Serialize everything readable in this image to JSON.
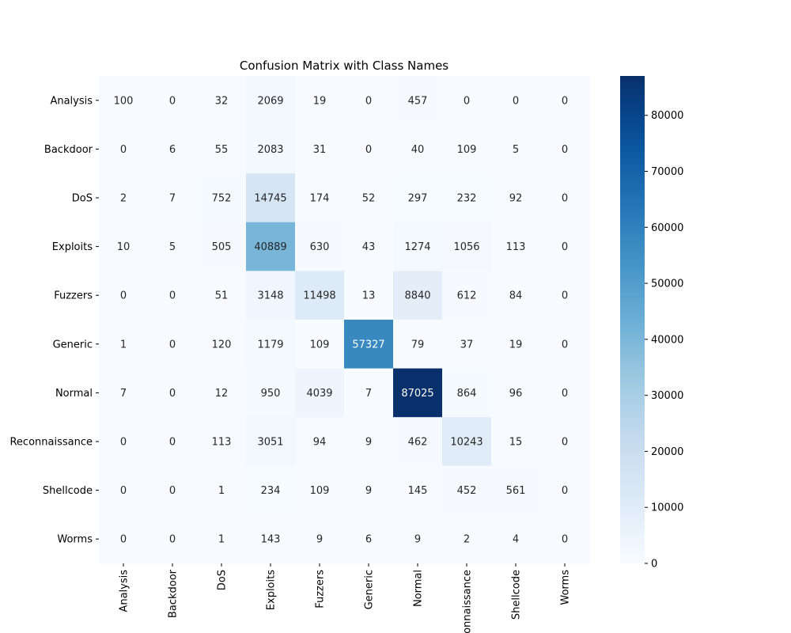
{
  "chart_data": {
    "type": "heatmap",
    "title": "Confusion Matrix with Class Names",
    "xlabel": "",
    "ylabel": "",
    "row_labels": [
      "Analysis",
      "Backdoor",
      "DoS",
      "Exploits",
      "Fuzzers",
      "Generic",
      "Normal",
      "Reconnaissance",
      "Shellcode",
      "Worms"
    ],
    "col_labels": [
      "Analysis",
      "Backdoor",
      "DoS",
      "Exploits",
      "Fuzzers",
      "Generic",
      "Normal",
      "Reconnaissance",
      "Shellcode",
      "Worms"
    ],
    "values": [
      [
        100,
        0,
        32,
        2069,
        19,
        0,
        457,
        0,
        0,
        0
      ],
      [
        0,
        6,
        55,
        2083,
        31,
        0,
        40,
        109,
        5,
        0
      ],
      [
        2,
        7,
        752,
        14745,
        174,
        52,
        297,
        232,
        92,
        0
      ],
      [
        10,
        5,
        505,
        40889,
        630,
        43,
        1274,
        1056,
        113,
        0
      ],
      [
        0,
        0,
        51,
        3148,
        11498,
        13,
        8840,
        612,
        84,
        0
      ],
      [
        1,
        0,
        120,
        1179,
        109,
        57327,
        79,
        37,
        19,
        0
      ],
      [
        7,
        0,
        12,
        950,
        4039,
        7,
        87025,
        864,
        96,
        0
      ],
      [
        0,
        0,
        113,
        3051,
        94,
        9,
        462,
        10243,
        15,
        0
      ],
      [
        0,
        0,
        1,
        234,
        109,
        9,
        145,
        452,
        561,
        0
      ],
      [
        0,
        0,
        1,
        143,
        9,
        6,
        9,
        2,
        4,
        0
      ]
    ],
    "colorbar": {
      "min": 0,
      "max": 87025,
      "ticks": [
        0,
        10000,
        20000,
        30000,
        40000,
        50000,
        60000,
        70000,
        80000
      ],
      "colormap": "Blues"
    },
    "grid": false
  }
}
